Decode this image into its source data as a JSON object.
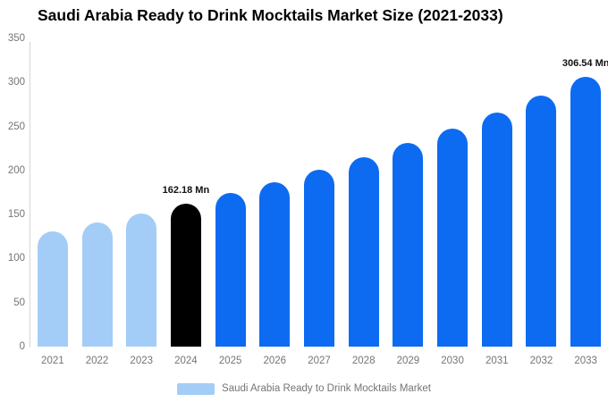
{
  "title": "Saudi Arabia Ready to Drink Mocktails Market Size (2021-2033)",
  "chart_data": {
    "type": "bar",
    "title": "Saudi Arabia Ready to Drink Mocktails Market Size (2021-2033)",
    "unit": "Mn",
    "categories": [
      "2021",
      "2022",
      "2023",
      "2024",
      "2025",
      "2026",
      "2027",
      "2028",
      "2029",
      "2030",
      "2031",
      "2032",
      "2033"
    ],
    "values": [
      131.16,
      140.78,
      151.1,
      162.18,
      174.07,
      186.83,
      200.53,
      215.23,
      231.01,
      247.94,
      266.12,
      285.63,
      306.54
    ],
    "bar_roles": [
      "historical",
      "historical",
      "historical",
      "base_year",
      "forecast",
      "forecast",
      "forecast",
      "forecast",
      "forecast",
      "forecast",
      "forecast",
      "forecast",
      "forecast"
    ],
    "palette": {
      "historical": "#a3cdf7",
      "base_year": "#000000",
      "forecast": "#0d6bf2"
    },
    "value_labels": [
      {
        "category": "2024",
        "text": "162.18 Mn"
      },
      {
        "category": "2033",
        "text": "306.54 Mn"
      }
    ],
    "ylim": [
      0,
      350
    ],
    "yticks": [
      0,
      50,
      100,
      150,
      200,
      250,
      300,
      350
    ],
    "xlabel": "",
    "ylabel": "",
    "grid": false,
    "legend_position": "bottom",
    "legend": [
      {
        "label": "Saudi Arabia Ready to Drink Mocktails Market",
        "color": "#a3cdf7"
      }
    ],
    "axis_text_color": "#757575",
    "axis_line_color": "#d6d6d6",
    "value_label_color": "#111111",
    "background_color": "#ffffff"
  }
}
